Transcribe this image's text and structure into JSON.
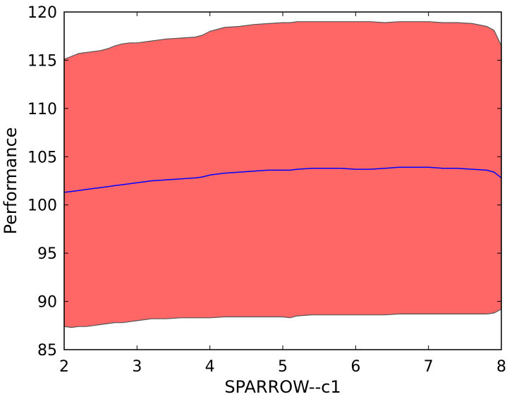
{
  "chart_data": {
    "type": "area",
    "xlabel": "SPARROW--c1",
    "ylabel": "Performance",
    "xlim": [
      2,
      8
    ],
    "ylim": [
      85,
      120
    ],
    "xticks": [
      2,
      3,
      4,
      5,
      6,
      7,
      8
    ],
    "yticks": [
      85,
      90,
      95,
      100,
      105,
      110,
      115,
      120
    ],
    "grid": false,
    "colors": {
      "band_fill": "#ff6666",
      "band_edge": "#555555",
      "mean_line": "#0000ff",
      "axes": "#000000"
    },
    "x": [
      2.0,
      2.1,
      2.2,
      2.3,
      2.4,
      2.5,
      2.6,
      2.7,
      2.8,
      2.9,
      3.0,
      3.2,
      3.4,
      3.6,
      3.8,
      3.9,
      4.0,
      4.2,
      4.4,
      4.6,
      4.8,
      5.0,
      5.1,
      5.2,
      5.4,
      5.6,
      5.8,
      6.0,
      6.2,
      6.4,
      6.6,
      6.8,
      7.0,
      7.2,
      7.4,
      7.6,
      7.8,
      7.9,
      8.0
    ],
    "series": [
      {
        "role": "upper",
        "values": [
          115.1,
          115.4,
          115.7,
          115.8,
          115.9,
          116.0,
          116.2,
          116.5,
          116.7,
          116.8,
          116.8,
          117.0,
          117.2,
          117.3,
          117.4,
          117.6,
          118.0,
          118.4,
          118.5,
          118.7,
          118.8,
          118.9,
          118.9,
          119.0,
          119.0,
          119.0,
          119.0,
          119.0,
          119.0,
          118.9,
          119.0,
          119.0,
          119.0,
          118.9,
          118.9,
          118.8,
          118.5,
          118.1,
          116.5
        ]
      },
      {
        "role": "mean",
        "values": [
          101.3,
          101.4,
          101.5,
          101.6,
          101.7,
          101.8,
          101.9,
          102.0,
          102.1,
          102.2,
          102.3,
          102.5,
          102.6,
          102.7,
          102.8,
          102.9,
          103.1,
          103.3,
          103.4,
          103.5,
          103.6,
          103.6,
          103.6,
          103.7,
          103.8,
          103.8,
          103.8,
          103.7,
          103.7,
          103.8,
          103.9,
          103.9,
          103.9,
          103.8,
          103.8,
          103.7,
          103.6,
          103.4,
          102.8
        ]
      },
      {
        "role": "lower",
        "values": [
          87.4,
          87.3,
          87.4,
          87.4,
          87.5,
          87.6,
          87.7,
          87.8,
          87.8,
          87.9,
          88.0,
          88.2,
          88.2,
          88.3,
          88.3,
          88.3,
          88.3,
          88.4,
          88.4,
          88.4,
          88.4,
          88.4,
          88.3,
          88.5,
          88.6,
          88.6,
          88.6,
          88.6,
          88.6,
          88.6,
          88.7,
          88.7,
          88.7,
          88.7,
          88.7,
          88.7,
          88.7,
          88.8,
          89.2
        ]
      }
    ]
  }
}
